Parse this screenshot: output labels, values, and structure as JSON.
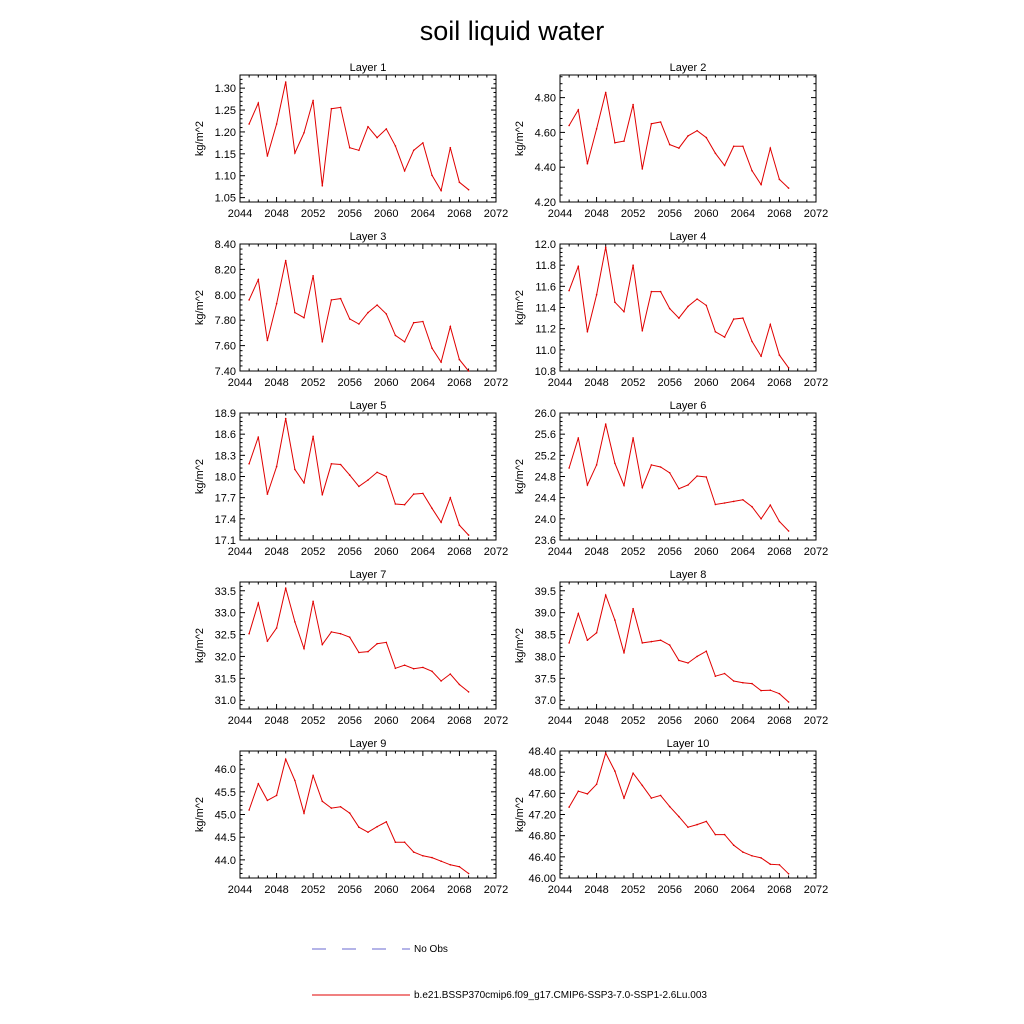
{
  "title": "soil liquid water",
  "legend": {
    "entries": [
      {
        "label": "No Obs",
        "color": "#6a6ad0",
        "style": "dashed"
      },
      {
        "label": "b.e21.BSSP370cmip6.f09_g17.CMIP6-SSP3-7.0-SSP1-2.6Lu.003",
        "color": "#e00000",
        "style": "solid"
      }
    ]
  },
  "chart_data": [
    {
      "type": "line",
      "title": "Layer 1",
      "ylabel": "kg/m^2",
      "xlim": [
        2044,
        2072
      ],
      "xticks": [
        2044,
        2048,
        2052,
        2056,
        2060,
        2064,
        2068,
        2072
      ],
      "ylim": [
        1.04,
        1.33
      ],
      "yticks": [
        "1.05",
        "1.10",
        "1.15",
        "1.20",
        "1.25",
        "1.30"
      ],
      "series": [
        {
          "x": [
            2045,
            2046,
            2047,
            2048,
            2049,
            2050,
            2051,
            2052,
            2053,
            2054,
            2055,
            2056,
            2057,
            2058,
            2059,
            2060,
            2061,
            2062,
            2063,
            2064,
            2065,
            2066,
            2067,
            2068,
            2069
          ],
          "y": [
            1.218,
            1.266,
            1.145,
            1.218,
            1.314,
            1.152,
            1.198,
            1.272,
            1.077,
            1.253,
            1.256,
            1.164,
            1.158,
            1.212,
            1.187,
            1.207,
            1.168,
            1.111,
            1.158,
            1.175,
            1.101,
            1.066,
            1.164,
            1.085,
            1.068
          ],
          "color": "#e00000"
        }
      ]
    },
    {
      "type": "line",
      "title": "Layer 2",
      "ylabel": "kg/m^2",
      "xlim": [
        2044,
        2072
      ],
      "xticks": [
        2044,
        2048,
        2052,
        2056,
        2060,
        2064,
        2068,
        2072
      ],
      "ylim": [
        4.2,
        4.93
      ],
      "yticks": [
        "4.20",
        "4.40",
        "4.60",
        "4.80"
      ],
      "series": [
        {
          "x": [
            2045,
            2046,
            2047,
            2048,
            2049,
            2050,
            2051,
            2052,
            2053,
            2054,
            2055,
            2056,
            2057,
            2058,
            2059,
            2060,
            2061,
            2062,
            2063,
            2064,
            2065,
            2066,
            2067,
            2068,
            2069
          ],
          "y": [
            4.64,
            4.73,
            4.42,
            4.62,
            4.83,
            4.54,
            4.55,
            4.76,
            4.39,
            4.65,
            4.66,
            4.53,
            4.51,
            4.58,
            4.61,
            4.57,
            4.48,
            4.41,
            4.52,
            4.52,
            4.38,
            4.3,
            4.51,
            4.33,
            4.28
          ],
          "color": "#e00000"
        }
      ]
    },
    {
      "type": "line",
      "title": "Layer 3",
      "ylabel": "kg/m^2",
      "xlim": [
        2044,
        2072
      ],
      "xticks": [
        2044,
        2048,
        2052,
        2056,
        2060,
        2064,
        2068,
        2072
      ],
      "ylim": [
        7.4,
        8.4
      ],
      "yticks": [
        "7.40",
        "7.60",
        "7.80",
        "8.00",
        "8.20",
        "8.40"
      ],
      "series": [
        {
          "x": [
            2045,
            2046,
            2047,
            2048,
            2049,
            2050,
            2051,
            2052,
            2053,
            2054,
            2055,
            2056,
            2057,
            2058,
            2059,
            2060,
            2061,
            2062,
            2063,
            2064,
            2065,
            2066,
            2067,
            2068,
            2069
          ],
          "y": [
            7.96,
            8.12,
            7.64,
            7.93,
            8.27,
            7.86,
            7.82,
            8.15,
            7.63,
            7.96,
            7.97,
            7.81,
            7.77,
            7.86,
            7.92,
            7.85,
            7.68,
            7.63,
            7.78,
            7.79,
            7.58,
            7.47,
            7.75,
            7.49,
            7.4
          ],
          "color": "#e00000"
        }
      ]
    },
    {
      "type": "line",
      "title": "Layer 4",
      "ylabel": "kg/m^2",
      "xlim": [
        2044,
        2072
      ],
      "xticks": [
        2044,
        2048,
        2052,
        2056,
        2060,
        2064,
        2068,
        2072
      ],
      "ylim": [
        10.8,
        12.0
      ],
      "yticks": [
        "10.8",
        "11.0",
        "11.2",
        "11.4",
        "11.6",
        "11.8",
        "12.0"
      ],
      "series": [
        {
          "x": [
            2045,
            2046,
            2047,
            2048,
            2049,
            2050,
            2051,
            2052,
            2053,
            2054,
            2055,
            2056,
            2057,
            2058,
            2059,
            2060,
            2061,
            2062,
            2063,
            2064,
            2065,
            2066,
            2067,
            2068,
            2069
          ],
          "y": [
            11.56,
            11.79,
            11.17,
            11.52,
            11.97,
            11.45,
            11.36,
            11.8,
            11.18,
            11.55,
            11.55,
            11.39,
            11.3,
            11.41,
            11.48,
            11.42,
            11.17,
            11.12,
            11.29,
            11.3,
            11.08,
            10.94,
            11.24,
            10.95,
            10.83
          ],
          "color": "#e00000"
        }
      ]
    },
    {
      "type": "line",
      "title": "Layer 5",
      "ylabel": "kg/m^2",
      "xlim": [
        2044,
        2072
      ],
      "xticks": [
        2044,
        2048,
        2052,
        2056,
        2060,
        2064,
        2068,
        2072
      ],
      "ylim": [
        17.1,
        18.9
      ],
      "yticks": [
        "17.1",
        "17.4",
        "17.7",
        "18.0",
        "18.3",
        "18.6",
        "18.9"
      ],
      "series": [
        {
          "x": [
            2045,
            2046,
            2047,
            2048,
            2049,
            2050,
            2051,
            2052,
            2053,
            2054,
            2055,
            2056,
            2057,
            2058,
            2059,
            2060,
            2061,
            2062,
            2063,
            2064,
            2065,
            2066,
            2067,
            2068,
            2069
          ],
          "y": [
            18.18,
            18.56,
            17.75,
            18.14,
            18.82,
            18.1,
            17.91,
            18.57,
            17.74,
            18.18,
            18.17,
            18.02,
            17.86,
            17.95,
            18.06,
            18.0,
            17.61,
            17.6,
            17.75,
            17.76,
            17.55,
            17.35,
            17.7,
            17.31,
            17.17
          ],
          "color": "#e00000"
        }
      ]
    },
    {
      "type": "line",
      "title": "Layer 6",
      "ylabel": "kg/m^2",
      "xlim": [
        2044,
        2072
      ],
      "xticks": [
        2044,
        2048,
        2052,
        2056,
        2060,
        2064,
        2068,
        2072
      ],
      "ylim": [
        23.6,
        26.0
      ],
      "yticks": [
        "23.6",
        "24.0",
        "24.4",
        "24.8",
        "25.2",
        "25.6",
        "26.0"
      ],
      "series": [
        {
          "x": [
            2045,
            2046,
            2047,
            2048,
            2049,
            2050,
            2051,
            2052,
            2053,
            2054,
            2055,
            2056,
            2057,
            2058,
            2059,
            2060,
            2061,
            2062,
            2063,
            2064,
            2065,
            2066,
            2067,
            2068,
            2069
          ],
          "y": [
            24.96,
            25.53,
            24.64,
            25.02,
            25.79,
            25.05,
            24.63,
            25.53,
            24.59,
            25.02,
            24.98,
            24.87,
            24.57,
            24.64,
            24.81,
            24.79,
            24.27,
            24.3,
            24.33,
            24.36,
            24.23,
            24.0,
            24.26,
            23.95,
            23.77
          ],
          "color": "#e00000"
        }
      ]
    },
    {
      "type": "line",
      "title": "Layer 7",
      "ylabel": "kg/m^2",
      "xlim": [
        2044,
        2072
      ],
      "xticks": [
        2044,
        2048,
        2052,
        2056,
        2060,
        2064,
        2068,
        2072
      ],
      "ylim": [
        30.8,
        33.7
      ],
      "yticks": [
        "31.0",
        "31.5",
        "32.0",
        "32.5",
        "33.0",
        "33.5"
      ],
      "series": [
        {
          "x": [
            2045,
            2046,
            2047,
            2048,
            2049,
            2050,
            2051,
            2052,
            2053,
            2054,
            2055,
            2056,
            2057,
            2058,
            2059,
            2060,
            2061,
            2062,
            2063,
            2064,
            2065,
            2066,
            2067,
            2068,
            2069
          ],
          "y": [
            32.52,
            33.22,
            32.35,
            32.65,
            33.56,
            32.79,
            32.18,
            33.26,
            32.27,
            32.56,
            32.52,
            32.44,
            32.09,
            32.11,
            32.29,
            32.32,
            31.73,
            31.8,
            31.72,
            31.75,
            31.66,
            31.44,
            31.6,
            31.36,
            31.19
          ],
          "color": "#e00000"
        }
      ]
    },
    {
      "type": "line",
      "title": "Layer 8",
      "ylabel": "kg/m^2",
      "xlim": [
        2044,
        2072
      ],
      "xticks": [
        2044,
        2048,
        2052,
        2056,
        2060,
        2064,
        2068,
        2072
      ],
      "ylim": [
        36.8,
        39.7
      ],
      "yticks": [
        "37.0",
        "37.5",
        "38.0",
        "38.5",
        "39.0",
        "39.5"
      ],
      "series": [
        {
          "x": [
            2045,
            2046,
            2047,
            2048,
            2049,
            2050,
            2051,
            2052,
            2053,
            2054,
            2055,
            2056,
            2057,
            2058,
            2059,
            2060,
            2061,
            2062,
            2063,
            2064,
            2065,
            2066,
            2067,
            2068,
            2069
          ],
          "y": [
            38.31,
            38.98,
            38.37,
            38.54,
            39.4,
            38.83,
            38.08,
            39.09,
            38.31,
            38.34,
            38.37,
            38.26,
            37.91,
            37.85,
            38.0,
            38.12,
            37.55,
            37.61,
            37.44,
            37.4,
            37.38,
            37.22,
            37.23,
            37.15,
            36.96
          ],
          "color": "#e00000"
        }
      ]
    },
    {
      "type": "line",
      "title": "Layer 9",
      "ylabel": "kg/m^2",
      "xlim": [
        2044,
        2072
      ],
      "xticks": [
        2044,
        2048,
        2052,
        2056,
        2060,
        2064,
        2068,
        2072
      ],
      "ylim": [
        43.6,
        46.4
      ],
      "yticks": [
        "44.0",
        "44.5",
        "45.0",
        "45.5",
        "46.0"
      ],
      "series": [
        {
          "x": [
            2045,
            2046,
            2047,
            2048,
            2049,
            2050,
            2051,
            2052,
            2053,
            2054,
            2055,
            2056,
            2057,
            2058,
            2059,
            2060,
            2061,
            2062,
            2063,
            2064,
            2065,
            2066,
            2067,
            2068,
            2069
          ],
          "y": [
            45.1,
            45.68,
            45.31,
            45.42,
            46.22,
            45.75,
            45.03,
            45.86,
            45.29,
            45.14,
            45.17,
            45.03,
            44.72,
            44.61,
            44.73,
            44.84,
            44.39,
            44.39,
            44.17,
            44.09,
            44.05,
            43.97,
            43.89,
            43.85,
            43.7
          ],
          "color": "#e00000"
        }
      ]
    },
    {
      "type": "line",
      "title": "Layer 10",
      "ylabel": "kg/m^2",
      "xlim": [
        2044,
        2072
      ],
      "xticks": [
        2044,
        2048,
        2052,
        2056,
        2060,
        2064,
        2068,
        2072
      ],
      "ylim": [
        46.0,
        48.4
      ],
      "yticks": [
        "46.00",
        "46.40",
        "46.80",
        "47.20",
        "47.60",
        "48.00",
        "48.40"
      ],
      "series": [
        {
          "x": [
            2045,
            2046,
            2047,
            2048,
            2049,
            2050,
            2051,
            2052,
            2053,
            2054,
            2055,
            2056,
            2057,
            2058,
            2059,
            2060,
            2061,
            2062,
            2063,
            2064,
            2065,
            2066,
            2067,
            2068,
            2069
          ],
          "y": [
            47.34,
            47.64,
            47.59,
            47.77,
            48.36,
            48.02,
            47.51,
            47.98,
            47.75,
            47.51,
            47.56,
            47.35,
            47.16,
            46.96,
            47.01,
            47.07,
            46.82,
            46.82,
            46.62,
            46.49,
            46.42,
            46.38,
            46.26,
            46.25,
            46.08
          ],
          "color": "#e00000"
        }
      ]
    }
  ]
}
